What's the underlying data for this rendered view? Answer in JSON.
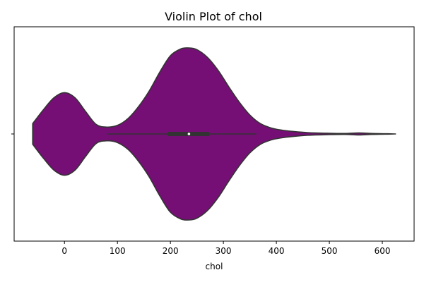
{
  "chart_data": {
    "type": "violin",
    "title": "Violin Plot of chol",
    "xlabel": "chol",
    "ylabel": "",
    "xlim": [
      -95,
      660
    ],
    "x_ticks": [
      0,
      100,
      200,
      300,
      400,
      500,
      600
    ],
    "x_tick_labels": [
      "0",
      "100",
      "200",
      "300",
      "400",
      "500",
      "600"
    ],
    "y_tick_labels": [
      ""
    ],
    "grid": false,
    "fill_color": "#750F75",
    "outline_color": "#333333",
    "density_range": [
      -60,
      625
    ],
    "density": [
      {
        "x": -60,
        "h": 0.12
      },
      {
        "x": -40,
        "h": 0.28
      },
      {
        "x": -20,
        "h": 0.42
      },
      {
        "x": 0,
        "h": 0.48
      },
      {
        "x": 20,
        "h": 0.42
      },
      {
        "x": 40,
        "h": 0.26
      },
      {
        "x": 60,
        "h": 0.11
      },
      {
        "x": 80,
        "h": 0.08
      },
      {
        "x": 100,
        "h": 0.1
      },
      {
        "x": 120,
        "h": 0.18
      },
      {
        "x": 140,
        "h": 0.32
      },
      {
        "x": 160,
        "h": 0.5
      },
      {
        "x": 180,
        "h": 0.72
      },
      {
        "x": 200,
        "h": 0.91
      },
      {
        "x": 220,
        "h": 0.99
      },
      {
        "x": 235,
        "h": 1.0
      },
      {
        "x": 250,
        "h": 0.98
      },
      {
        "x": 270,
        "h": 0.89
      },
      {
        "x": 290,
        "h": 0.74
      },
      {
        "x": 310,
        "h": 0.55
      },
      {
        "x": 330,
        "h": 0.37
      },
      {
        "x": 350,
        "h": 0.22
      },
      {
        "x": 370,
        "h": 0.12
      },
      {
        "x": 390,
        "h": 0.07
      },
      {
        "x": 410,
        "h": 0.045
      },
      {
        "x": 430,
        "h": 0.03
      },
      {
        "x": 460,
        "h": 0.015
      },
      {
        "x": 500,
        "h": 0.008
      },
      {
        "x": 530,
        "h": 0.006
      },
      {
        "x": 555,
        "h": 0.012
      },
      {
        "x": 580,
        "h": 0.006
      },
      {
        "x": 605,
        "h": 0.003
      },
      {
        "x": 625,
        "h": 0.0
      }
    ],
    "box": {
      "q1": 195,
      "median": 235,
      "q3": 273,
      "whisker_low": 80,
      "whisker_high": 362
    }
  }
}
